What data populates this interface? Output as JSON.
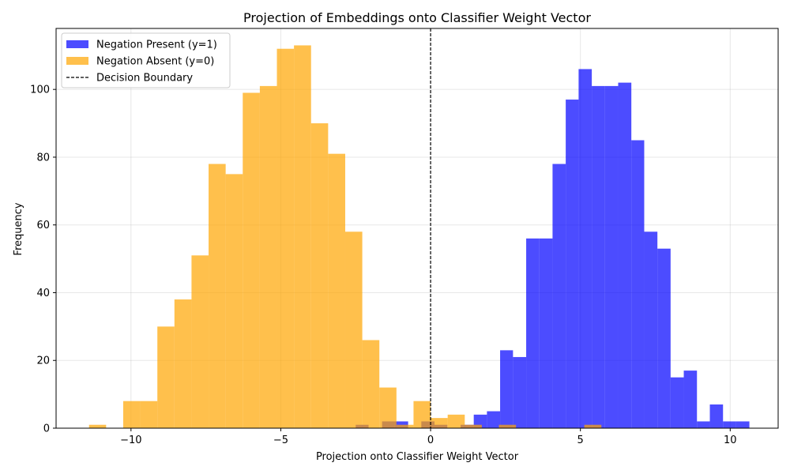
{
  "chart_data": {
    "type": "bar",
    "title": "Projection of Embeddings onto Classifier Weight Vector",
    "xlabel": "Projection onto Classifier Weight Vector",
    "ylabel": "Frequency",
    "xlim": [
      -12.5,
      11.6
    ],
    "ylim": [
      0,
      118
    ],
    "xticks": [
      -10,
      -5,
      0,
      5,
      10
    ],
    "xtick_labels": [
      "−10",
      "−5",
      "0",
      "5",
      "10"
    ],
    "yticks": [
      0,
      20,
      40,
      60,
      80,
      100
    ],
    "ytick_labels": [
      "0",
      "20",
      "40",
      "60",
      "80",
      "100"
    ],
    "grid": true,
    "legend_position": "top-left",
    "decision_boundary": 0,
    "series": [
      {
        "name": "Negation Present (y=1)",
        "color": "#0000ff",
        "opacity": 0.7,
        "bins": [
          {
            "x0": -2.5,
            "x1": -2.07,
            "value": 1
          },
          {
            "x0": -1.62,
            "x1": -1.19,
            "value": 2
          },
          {
            "x0": -1.19,
            "x1": -0.75,
            "value": 2
          },
          {
            "x0": -0.31,
            "x1": 0.13,
            "value": 2
          },
          {
            "x0": 0.13,
            "x1": 0.56,
            "value": 1
          },
          {
            "x0": 1.0,
            "x1": 1.44,
            "value": 1
          },
          {
            "x0": 1.44,
            "x1": 1.88,
            "value": 4
          },
          {
            "x0": 1.88,
            "x1": 2.32,
            "value": 5
          },
          {
            "x0": 2.32,
            "x1": 2.75,
            "value": 23
          },
          {
            "x0": 2.75,
            "x1": 3.19,
            "value": 21
          },
          {
            "x0": 3.19,
            "x1": 3.63,
            "value": 56
          },
          {
            "x0": 3.63,
            "x1": 4.07,
            "value": 56
          },
          {
            "x0": 4.07,
            "x1": 4.51,
            "value": 78
          },
          {
            "x0": 4.51,
            "x1": 4.94,
            "value": 97
          },
          {
            "x0": 4.94,
            "x1": 5.38,
            "value": 106
          },
          {
            "x0": 5.38,
            "x1": 5.82,
            "value": 101
          },
          {
            "x0": 5.82,
            "x1": 6.26,
            "value": 101
          },
          {
            "x0": 6.26,
            "x1": 6.7,
            "value": 102
          },
          {
            "x0": 6.7,
            "x1": 7.13,
            "value": 85
          },
          {
            "x0": 7.13,
            "x1": 7.57,
            "value": 58
          },
          {
            "x0": 7.57,
            "x1": 8.01,
            "value": 53
          },
          {
            "x0": 8.01,
            "x1": 8.45,
            "value": 15
          },
          {
            "x0": 8.45,
            "x1": 8.89,
            "value": 17
          },
          {
            "x0": 8.89,
            "x1": 9.32,
            "value": 2
          },
          {
            "x0": 9.32,
            "x1": 9.76,
            "value": 7
          },
          {
            "x0": 9.76,
            "x1": 10.2,
            "value": 2
          },
          {
            "x0": 10.2,
            "x1": 10.64,
            "value": 2
          }
        ]
      },
      {
        "name": "Negation Absent (y=0)",
        "color": "#ffa500",
        "opacity": 0.7,
        "bins": [
          {
            "x0": -11.4,
            "x1": -10.83,
            "value": 1
          },
          {
            "x0": -10.26,
            "x1": -9.69,
            "value": 8
          },
          {
            "x0": -9.69,
            "x1": -9.12,
            "value": 8
          },
          {
            "x0": -9.12,
            "x1": -8.55,
            "value": 30
          },
          {
            "x0": -8.55,
            "x1": -7.98,
            "value": 38
          },
          {
            "x0": -7.98,
            "x1": -7.41,
            "value": 51
          },
          {
            "x0": -7.41,
            "x1": -6.84,
            "value": 78
          },
          {
            "x0": -6.84,
            "x1": -6.27,
            "value": 75
          },
          {
            "x0": -6.27,
            "x1": -5.7,
            "value": 99
          },
          {
            "x0": -5.7,
            "x1": -5.13,
            "value": 101
          },
          {
            "x0": -5.13,
            "x1": -4.56,
            "value": 112
          },
          {
            "x0": -4.56,
            "x1": -3.99,
            "value": 113
          },
          {
            "x0": -3.99,
            "x1": -3.42,
            "value": 90
          },
          {
            "x0": -3.42,
            "x1": -2.85,
            "value": 81
          },
          {
            "x0": -2.85,
            "x1": -2.28,
            "value": 58
          },
          {
            "x0": -2.28,
            "x1": -1.71,
            "value": 26
          },
          {
            "x0": -1.71,
            "x1": -1.14,
            "value": 12
          },
          {
            "x0": -1.14,
            "x1": -0.57,
            "value": 1
          },
          {
            "x0": -0.57,
            "x1": 0.0,
            "value": 8
          },
          {
            "x0": 0.0,
            "x1": 0.57,
            "value": 3
          },
          {
            "x0": 0.57,
            "x1": 1.14,
            "value": 4
          },
          {
            "x0": 1.14,
            "x1": 1.71,
            "value": 1
          },
          {
            "x0": 2.28,
            "x1": 2.85,
            "value": 1
          },
          {
            "x0": 5.13,
            "x1": 5.7,
            "value": 1
          }
        ]
      }
    ],
    "legend": [
      {
        "label": "Negation Present (y=1)",
        "kind": "patch",
        "color": "#0000ff"
      },
      {
        "label": "Negation Absent (y=0)",
        "kind": "patch",
        "color": "#ffa500"
      },
      {
        "label": "Decision Boundary",
        "kind": "dashed-line",
        "color": "#000000"
      }
    ]
  }
}
